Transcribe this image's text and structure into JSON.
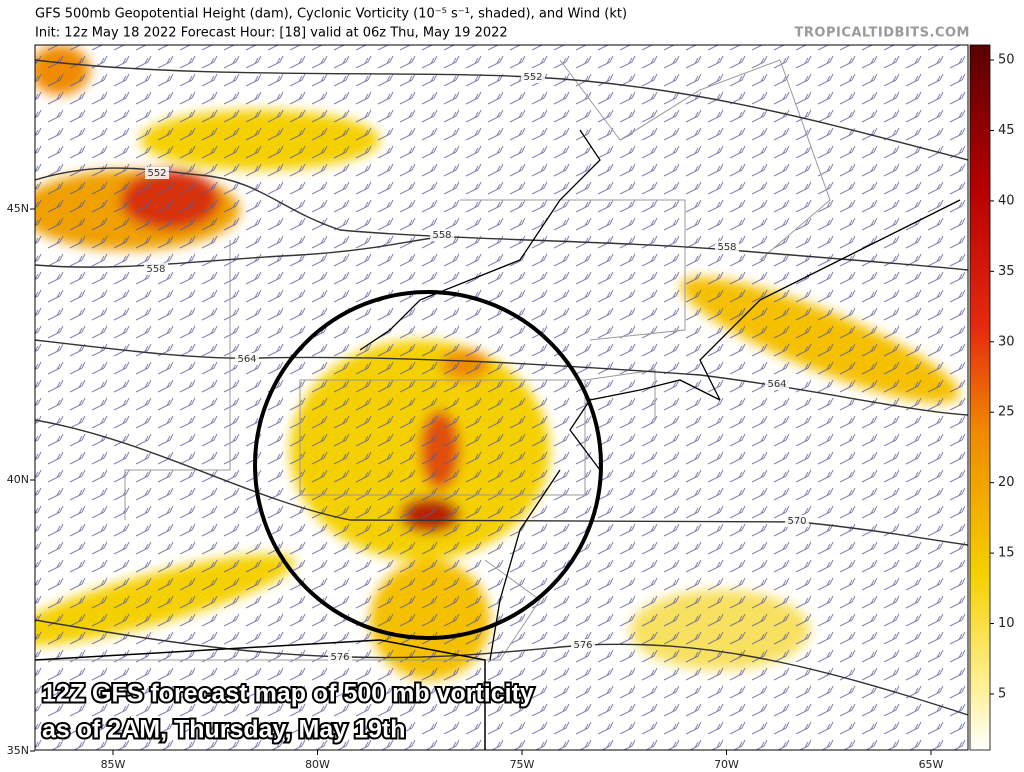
{
  "header": {
    "title": "GFS 500mb Geopotential Height (dam), Cyclonic Vorticity (10⁻⁵ s⁻¹, shaded), and Wind (kt)",
    "subtitle": "Init: 12z May 18 2022   Forecast Hour: [18]   valid at 06z Thu, May 19 2022",
    "source": "TROPICALTIDBITS.COM"
  },
  "axes": {
    "longitude_labels": [
      "85W",
      "80W",
      "75W",
      "70W",
      "65W"
    ],
    "latitude_labels": [
      "45N",
      "40N",
      "35N"
    ]
  },
  "colorbar": {
    "ticks": [
      5,
      10,
      15,
      20,
      25,
      30,
      35,
      40,
      45,
      50
    ]
  },
  "contour_labels": [
    "552",
    "552",
    "558",
    "558",
    "558",
    "564",
    "564",
    "570",
    "576",
    "576"
  ],
  "caption": [
    "12Z GFS forecast map of 500 mb vorticity",
    "as of 2AM, Thursday, May 19th"
  ]
}
